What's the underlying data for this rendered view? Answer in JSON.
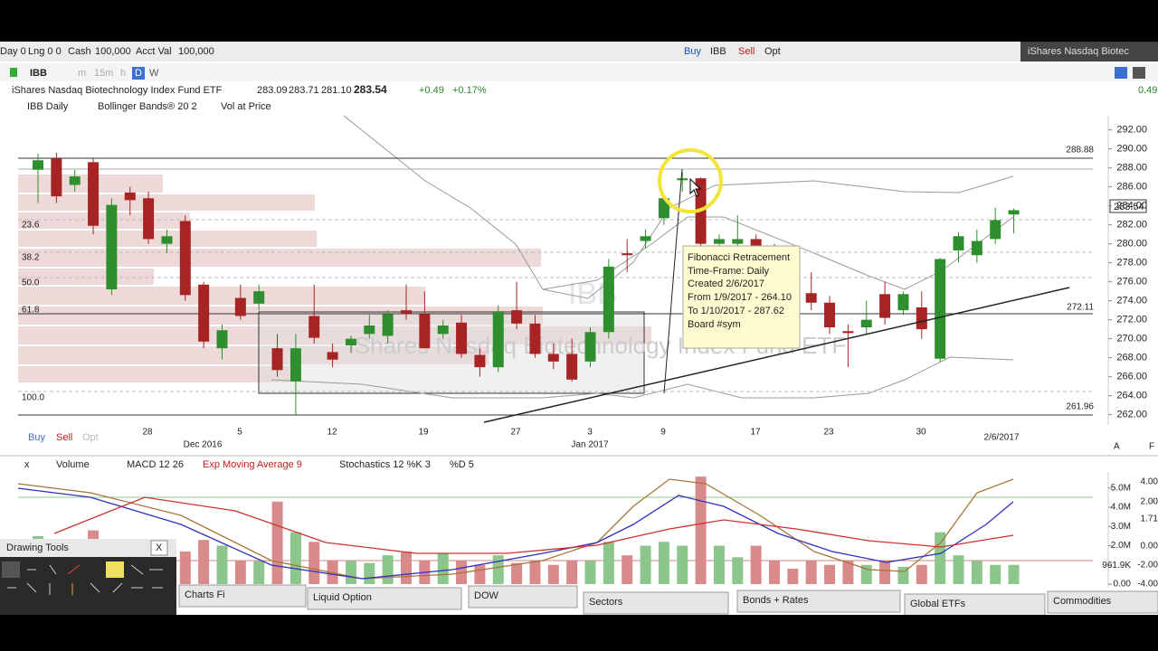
{
  "account_bar": {
    "day": "Day 0",
    "lng": "Lng 0 0",
    "cash_label": "Cash",
    "cash": "100,000",
    "acct_label": "Acct Val",
    "acct": "100,000",
    "buy": "Buy",
    "symbol": "IBB",
    "sell": "Sell",
    "opt": "Opt",
    "right_title": "iShares Nasdaq Biotec"
  },
  "toolbar": {
    "symbol": "IBB",
    "m": "m",
    "m15": "15m",
    "h": "h",
    "d": "D",
    "w": "W"
  },
  "quote": {
    "name": "iShares Nasdaq Biotechnology Index Fund ETF",
    "open": "283.09",
    "high": "283.71",
    "low": "281.10",
    "last": "283.54",
    "change": "+0.49",
    "change_pct": "+0.17%",
    "right_change": "0.49"
  },
  "studies": {
    "symbol": "IBB Daily",
    "bollinger": "Bollinger Bands® 20 2",
    "vap": "Vol at Price"
  },
  "watermark": {
    "symbol": "IBB",
    "name": "iShares Nasdaq Biotechnology Index Fund ETF"
  },
  "fib_labels": [
    "23.6",
    "38.2",
    "50.0",
    "61.8",
    "100.0"
  ],
  "level_labels": [
    "288.88",
    "272.11",
    "261.96"
  ],
  "last_price_label": "283.54",
  "tooltip": [
    "Fibonacci Retracement",
    "Time-Frame: Daily",
    "Created 2/6/2017",
    "From 1/9/2017 - 264.10",
    "To 1/10/2017 - 287.62",
    "Board #sym"
  ],
  "date_labels": [
    "28",
    "Dec 2016",
    "5",
    "12",
    "19",
    "27",
    "3",
    "Jan 2017",
    "9",
    "17",
    "23",
    "30",
    "2/6/2017"
  ],
  "order_buttons": {
    "buy": "Buy",
    "sell": "Sell",
    "opt": "Opt"
  },
  "right_icons": [
    "A",
    "L",
    "F"
  ],
  "chart_data": {
    "type": "candlestick",
    "ylim": [
      261.3,
      293.3
    ],
    "yticks": [
      {
        "value": 262,
        "label": "262.00"
      },
      {
        "value": 264,
        "label": "264.00"
      },
      {
        "value": 266,
        "label": "266.00"
      },
      {
        "value": 268,
        "label": "268.00"
      },
      {
        "value": 270,
        "label": "270.00"
      },
      {
        "value": 272,
        "label": "272.00"
      },
      {
        "value": 274,
        "label": "274.00"
      },
      {
        "value": 276,
        "label": "276.00"
      },
      {
        "value": 278,
        "label": "278.00"
      },
      {
        "value": 280,
        "label": "280.00"
      },
      {
        "value": 282,
        "label": "282.00"
      },
      {
        "value": 284,
        "label": "284.00"
      },
      {
        "value": 286,
        "label": "286.00"
      },
      {
        "value": 288,
        "label": "288.00"
      },
      {
        "value": 290,
        "label": "290.00"
      },
      {
        "value": 292,
        "label": "292.00"
      }
    ],
    "up_color": "#2f8f2f",
    "down_color": "#a82424",
    "candles": [
      [
        287.8,
        289.5,
        284.3,
        288.8
      ],
      [
        289.0,
        289.6,
        284.3,
        285.0
      ],
      [
        286.2,
        287.8,
        285.5,
        287.1
      ],
      [
        288.6,
        289.0,
        281.0,
        281.9
      ],
      [
        275.2,
        284.8,
        274.6,
        284.1
      ],
      [
        285.4,
        286.0,
        283.0,
        284.6
      ],
      [
        284.8,
        285.5,
        280.0,
        280.5
      ],
      [
        280.0,
        281.5,
        279.0,
        280.8
      ],
      [
        282.4,
        283.0,
        274.0,
        274.6
      ],
      [
        275.7,
        276.0,
        269.0,
        269.7
      ],
      [
        269.0,
        271.5,
        267.8,
        270.9
      ],
      [
        274.3,
        275.7,
        272.0,
        272.4
      ],
      [
        273.7,
        275.7,
        273.0,
        275.0
      ],
      [
        269.0,
        270.5,
        266.0,
        266.7
      ],
      [
        265.5,
        270.5,
        262.0,
        269.0
      ],
      [
        272.4,
        275.7,
        269.5,
        270.1
      ],
      [
        268.6,
        269.5,
        267.0,
        267.8
      ],
      [
        269.3,
        270.3,
        268.5,
        270.0
      ],
      [
        270.5,
        272.5,
        270.0,
        271.4
      ],
      [
        270.3,
        273.0,
        269.5,
        272.6
      ],
      [
        273.0,
        275.7,
        272.0,
        272.6
      ],
      [
        272.6,
        275.0,
        269.0,
        269.0
      ],
      [
        270.5,
        272.0,
        270.0,
        271.4
      ],
      [
        271.7,
        272.5,
        268.0,
        268.4
      ],
      [
        268.3,
        269.0,
        266.0,
        267.0
      ],
      [
        267.0,
        273.5,
        266.5,
        272.9
      ],
      [
        273.0,
        276.0,
        271.0,
        271.6
      ],
      [
        271.6,
        272.5,
        268.0,
        268.4
      ],
      [
        268.4,
        269.5,
        266.8,
        267.6
      ],
      [
        268.4,
        270.0,
        265.5,
        265.7
      ],
      [
        267.6,
        271.2,
        267.0,
        270.7
      ],
      [
        270.7,
        278.4,
        270.0,
        277.6
      ],
      [
        279.0,
        280.5,
        277.0,
        278.8
      ],
      [
        280.3,
        281.5,
        279.5,
        280.8
      ],
      [
        282.7,
        285.0,
        282.0,
        284.8
      ],
      [
        286.7,
        287.6,
        285.5,
        286.9
      ],
      [
        286.9,
        287.0,
        279.5,
        280.0
      ],
      [
        280.0,
        281.0,
        278.0,
        280.5
      ],
      [
        280.0,
        283.0,
        279.0,
        280.5
      ],
      [
        280.5,
        281.0,
        278.5,
        279.0
      ],
      [
        279.0,
        280.0,
        277.0,
        277.5
      ],
      [
        277.0,
        278.0,
        274.5,
        275.0
      ],
      [
        274.8,
        277.0,
        273.0,
        273.8
      ],
      [
        273.8,
        274.5,
        270.5,
        271.2
      ],
      [
        270.8,
        271.5,
        267.0,
        270.6
      ],
      [
        271.2,
        274.0,
        270.5,
        272.0
      ],
      [
        274.7,
        276.0,
        271.5,
        272.2
      ],
      [
        273.0,
        275.0,
        272.5,
        274.7
      ],
      [
        273.3,
        275.0,
        270.0,
        271.0
      ],
      [
        267.9,
        278.5,
        267.5,
        278.4
      ],
      [
        279.3,
        281.2,
        278.0,
        280.8
      ],
      [
        278.8,
        281.5,
        278.0,
        280.3
      ],
      [
        280.5,
        283.8,
        280.0,
        282.5
      ],
      [
        283.09,
        283.71,
        281.1,
        283.54
      ]
    ],
    "volume": {
      "ylim": [
        0,
        5.7
      ],
      "yticks": [
        {
          "value": 5,
          "label": "5.0M"
        },
        {
          "value": 4,
          "label": "4.0M"
        },
        {
          "value": 3,
          "label": "3.0M"
        },
        {
          "value": 2,
          "label": "2.0M"
        },
        {
          "value": 0.9619,
          "label": "961.9K"
        },
        {
          "value": 0,
          "label": "0.00"
        }
      ],
      "values": [
        2.5,
        1.8,
        1.4,
        2.8,
        2.0,
        1.3,
        1.6,
        1.5,
        1.7,
        2.3,
        2.0,
        1.2,
        1.2,
        4.3,
        2.7,
        2.2,
        1.2,
        1.2,
        1.1,
        1.5,
        1.7,
        1.2,
        1.6,
        1.2,
        1.0,
        1.5,
        1.1,
        1.2,
        1.0,
        1.2,
        1.2,
        2.2,
        1.5,
        2.0,
        2.2,
        2.0,
        5.6,
        2.0,
        1.4,
        2.0,
        1.2,
        0.8,
        1.2,
        1.0,
        1.2,
        1.0,
        1.2,
        0.9,
        1.0,
        2.7,
        1.5,
        1.2,
        1.0,
        1.0
      ],
      "up_color": "#8cc68c",
      "down_color": "#d98a8a"
    }
  },
  "osc_labels": [
    "4.00",
    "2.00",
    "1.71",
    "0.00",
    "-2.00",
    "-4.00"
  ],
  "lower_studies": {
    "close": "x",
    "volume": "Volume",
    "macd": "MACD 12 26",
    "ema": "Exp Moving Average 9",
    "stoch": "Stochastics 12 %K 3",
    "d": "%D 5"
  },
  "drawing_tools": {
    "title": "Drawing Tools",
    "close": "X"
  },
  "tabs": [
    "Charts Fi",
    "Liquid Option",
    "DOW",
    "Sectors",
    "Bonds + Rates",
    "Global ETFs",
    "Commodities"
  ]
}
